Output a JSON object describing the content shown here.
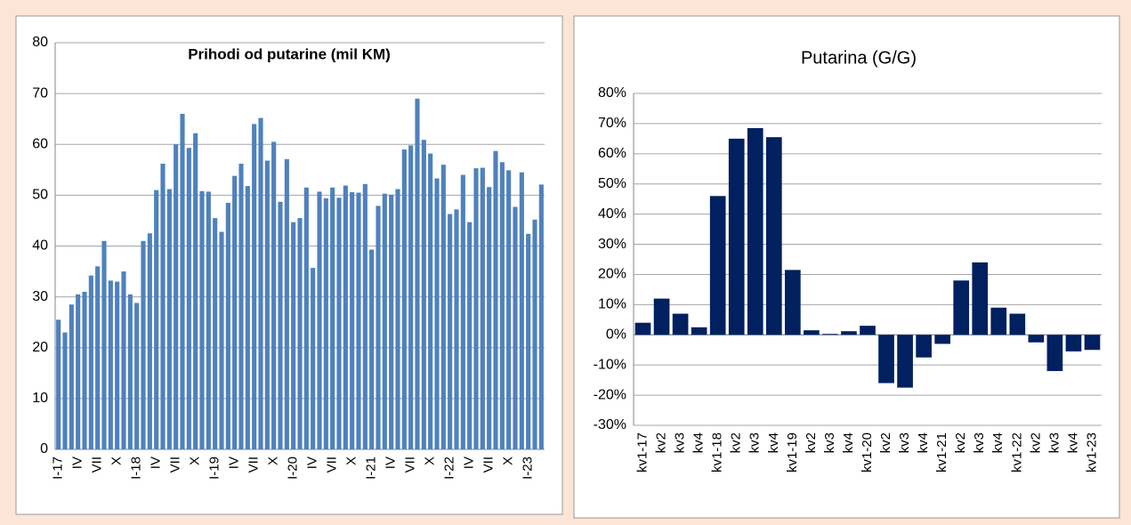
{
  "chart_data": [
    {
      "type": "bar",
      "title": "Prihodi od putarine (mil KM)",
      "categories": [
        "I-17",
        null,
        null,
        "IV",
        null,
        null,
        "VII",
        null,
        null,
        "X",
        null,
        null,
        "I-18",
        null,
        null,
        "IV",
        null,
        null,
        "VII",
        null,
        null,
        "X",
        null,
        null,
        "I-19",
        null,
        null,
        "IV",
        null,
        null,
        "VII",
        null,
        null,
        "X",
        null,
        null,
        "I-20",
        null,
        null,
        "IV",
        null,
        null,
        "VII",
        null,
        null,
        "X",
        null,
        null,
        "I-21",
        null,
        null,
        "IV",
        null,
        null,
        "VII",
        null,
        null,
        "X",
        null,
        null,
        "I-22",
        null,
        null,
        "IV",
        null,
        null,
        "VII",
        null,
        null,
        "X",
        null,
        null,
        "I-23",
        null,
        null
      ],
      "values": [
        25.5,
        23,
        28.5,
        30.5,
        31,
        34.2,
        36,
        41,
        33.2,
        33,
        35,
        30.5,
        28.8,
        41,
        42.5,
        51,
        56.2,
        51.2,
        60,
        66,
        59.3,
        62.2,
        50.8,
        50.7,
        45.5,
        42.8,
        48.5,
        53.8,
        56.2,
        51.8,
        64,
        65.2,
        56.8,
        60.5,
        48.7,
        57.1,
        44.7,
        45.5,
        51.5,
        35.7,
        50.7,
        49.4,
        51.5,
        49.5,
        51.9,
        50.6,
        50.5,
        52.2,
        39.3,
        47.9,
        50.3,
        50.1,
        51.2,
        59,
        59.8,
        69,
        60.9,
        58.2,
        53.3,
        56,
        46.3,
        47.2,
        54,
        44.7,
        55.3,
        55.4,
        51.6,
        58.7,
        56.5,
        54.9,
        47.7,
        54.5,
        42.4,
        45.2,
        52.1
      ],
      "color": "#4f81bd",
      "ylim": [
        0,
        80
      ],
      "yticks": [
        0,
        10,
        20,
        30,
        40,
        50,
        60,
        70,
        80
      ],
      "grid": true
    },
    {
      "type": "bar",
      "title": "Putarina (G/G)",
      "categories": [
        "kv1-17",
        "kv2",
        "kv3",
        "kv4",
        "kv1-18",
        "kv2",
        "kv3",
        "kv4",
        "kv1-19",
        "kv2",
        "kv3",
        "kv4",
        "kv1-20",
        "kv2",
        "kv3",
        "kv4",
        "kv1-21",
        "kv2",
        "kv3",
        "kv4",
        "kv1-22",
        "kv2",
        "kv3",
        "kv4",
        "kv1-23"
      ],
      "values": [
        4,
        12,
        7,
        2.5,
        46,
        65,
        68.5,
        65.5,
        21.5,
        1.5,
        0.3,
        1.2,
        3,
        -16,
        -17.5,
        -7.5,
        -3,
        18,
        24,
        9,
        7,
        -2.5,
        -12,
        -5.5,
        -5
      ],
      "color": "#002060",
      "ylim": [
        -30,
        80
      ],
      "yticks": [
        {
          "value": -30,
          "label": "-30%"
        },
        {
          "value": -20,
          "label": "-20%"
        },
        {
          "value": -10,
          "label": "-10%"
        },
        {
          "value": 0,
          "label": "0%"
        },
        {
          "value": 10,
          "label": "10%"
        },
        {
          "value": 20,
          "label": "20%"
        },
        {
          "value": 30,
          "label": "30%"
        },
        {
          "value": 40,
          "label": "40%"
        },
        {
          "value": 50,
          "label": "50%"
        },
        {
          "value": 60,
          "label": "60%"
        },
        {
          "value": 70,
          "label": "70%"
        },
        {
          "value": 80,
          "label": "80%"
        }
      ],
      "grid": true
    }
  ]
}
